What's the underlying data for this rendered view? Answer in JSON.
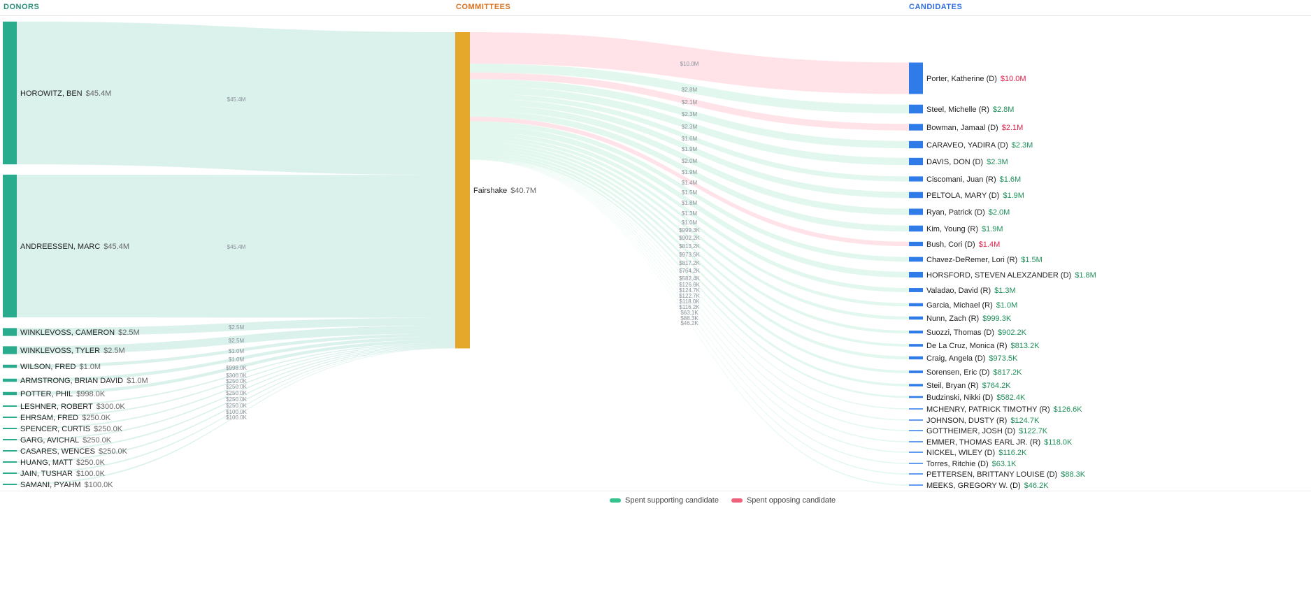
{
  "headers": {
    "donors": "DONORS",
    "committees": "COMMITTEES",
    "candidates": "CANDIDATES"
  },
  "colors": {
    "donors": "#2a8f7a",
    "donor_node": "#2aab8e",
    "committees": "#d9731f",
    "committee_node": "#e5a82a",
    "candidates": "#2f6fe0",
    "candidate_node": "#2f7be8",
    "support": "#34c38a",
    "oppose": "#f0607a",
    "support_text": "#1f8f5a",
    "oppose_text": "#e0204a"
  },
  "legend": [
    {
      "label": "Spent supporting candidate",
      "type": "support"
    },
    {
      "label": "Spent opposing candidate",
      "type": "oppose"
    }
  ],
  "chart_data": {
    "type": "sankey",
    "unit": "USD millions",
    "donors": [
      {
        "name": "HOROWITZ, BEN",
        "label": "$45.4M",
        "value": 45.4
      },
      {
        "name": "ANDREESSEN, MARC",
        "label": "$45.4M",
        "value": 45.4
      },
      {
        "name": "WINKLEVOSS, CAMERON",
        "label": "$2.5M",
        "value": 2.5
      },
      {
        "name": "WINKLEVOSS, TYLER",
        "label": "$2.5M",
        "value": 2.5
      },
      {
        "name": "WILSON, FRED",
        "label": "$1.0M",
        "value": 1.0
      },
      {
        "name": "ARMSTRONG, BRIAN DAVID",
        "label": "$1.0M",
        "value": 1.0
      },
      {
        "name": "POTTER, PHIL",
        "label": "$998.0K",
        "value": 0.998
      },
      {
        "name": "LESHNER, ROBERT",
        "label": "$300.0K",
        "value": 0.3
      },
      {
        "name": "EHRSAM, FRED",
        "label": "$250.0K",
        "value": 0.25
      },
      {
        "name": "SPENCER, CURTIS",
        "label": "$250.0K",
        "value": 0.25
      },
      {
        "name": "GARG, AVICHAL",
        "label": "$250.0K",
        "value": 0.25
      },
      {
        "name": "CASARES, WENCES",
        "label": "$250.0K",
        "value": 0.25
      },
      {
        "name": "HUANG, MATT",
        "label": "$250.0K",
        "value": 0.25
      },
      {
        "name": "JAIN, TUSHAR",
        "label": "$100.0K",
        "value": 0.1
      },
      {
        "name": "SAMANI, PYAHM",
        "label": "$100.0K",
        "value": 0.1
      }
    ],
    "committee": {
      "name": "Fairshake",
      "label": "$40.7M",
      "value": 40.7
    },
    "candidates": [
      {
        "name": "Porter, Katherine (D)",
        "label": "$10.0M",
        "value": 10.0,
        "type": "oppose"
      },
      {
        "name": "Steel, Michelle (R)",
        "label": "$2.8M",
        "value": 2.8,
        "type": "support"
      },
      {
        "name": "Bowman, Jamaal (D)",
        "label": "$2.1M",
        "value": 2.1,
        "type": "oppose"
      },
      {
        "name": "CARAVEO, YADIRA (D)",
        "label": "$2.3M",
        "value": 2.3,
        "type": "support"
      },
      {
        "name": "DAVIS, DON (D)",
        "label": "$2.3M",
        "value": 2.3,
        "type": "support"
      },
      {
        "name": "Ciscomani, Juan (R)",
        "label": "$1.6M",
        "value": 1.6,
        "type": "support"
      },
      {
        "name": "PELTOLA, MARY (D)",
        "label": "$1.9M",
        "value": 1.9,
        "type": "support"
      },
      {
        "name": "Ryan, Patrick (D)",
        "label": "$2.0M",
        "value": 2.0,
        "type": "support"
      },
      {
        "name": "Kim, Young (R)",
        "label": "$1.9M",
        "value": 1.9,
        "type": "support"
      },
      {
        "name": "Bush, Cori (D)",
        "label": "$1.4M",
        "value": 1.4,
        "type": "oppose"
      },
      {
        "name": "Chavez-DeRemer, Lori (R)",
        "label": "$1.5M",
        "value": 1.5,
        "type": "support"
      },
      {
        "name": "HORSFORD, STEVEN ALEXZANDER (D)",
        "label": "$1.8M",
        "value": 1.8,
        "type": "support"
      },
      {
        "name": "Valadao, David (R)",
        "label": "$1.3M",
        "value": 1.3,
        "type": "support"
      },
      {
        "name": "Garcia, Michael (R)",
        "label": "$1.0M",
        "value": 1.0,
        "type": "support"
      },
      {
        "name": "Nunn, Zach (R)",
        "label": "$999.3K",
        "value": 0.9993,
        "type": "support"
      },
      {
        "name": "Suozzi, Thomas (D)",
        "label": "$902.2K",
        "value": 0.9022,
        "type": "support"
      },
      {
        "name": "De La Cruz, Monica (R)",
        "label": "$813.2K",
        "value": 0.8132,
        "type": "support"
      },
      {
        "name": "Craig, Angela (D)",
        "label": "$973.5K",
        "value": 0.9735,
        "type": "support"
      },
      {
        "name": "Sorensen, Eric (D)",
        "label": "$817.2K",
        "value": 0.8172,
        "type": "support"
      },
      {
        "name": "Steil, Bryan (R)",
        "label": "$764.2K",
        "value": 0.7642,
        "type": "support"
      },
      {
        "name": "Budzinski, Nikki (D)",
        "label": "$582.4K",
        "value": 0.5824,
        "type": "support"
      },
      {
        "name": "MCHENRY, PATRICK TIMOTHY (R)",
        "label": "$126.6K",
        "value": 0.1266,
        "type": "support"
      },
      {
        "name": "JOHNSON, DUSTY (R)",
        "label": "$124.7K",
        "value": 0.1247,
        "type": "support"
      },
      {
        "name": "GOTTHEIMER, JOSH (D)",
        "label": "$122.7K",
        "value": 0.1227,
        "type": "support"
      },
      {
        "name": "EMMER, THOMAS EARL JR. (R)",
        "label": "$118.0K",
        "value": 0.118,
        "type": "support"
      },
      {
        "name": "NICKEL, WILEY (D)",
        "label": "$116.2K",
        "value": 0.1162,
        "type": "support"
      },
      {
        "name": "Torres, Ritchie (D)",
        "label": "$63.1K",
        "value": 0.0631,
        "type": "support"
      },
      {
        "name": "PETTERSEN, BRITTANY LOUISE (D)",
        "label": "$88.3K",
        "value": 0.0883,
        "type": "support"
      },
      {
        "name": "MEEKS, GREGORY W. (D)",
        "label": "$46.2K",
        "value": 0.0462,
        "type": "support"
      }
    ]
  }
}
